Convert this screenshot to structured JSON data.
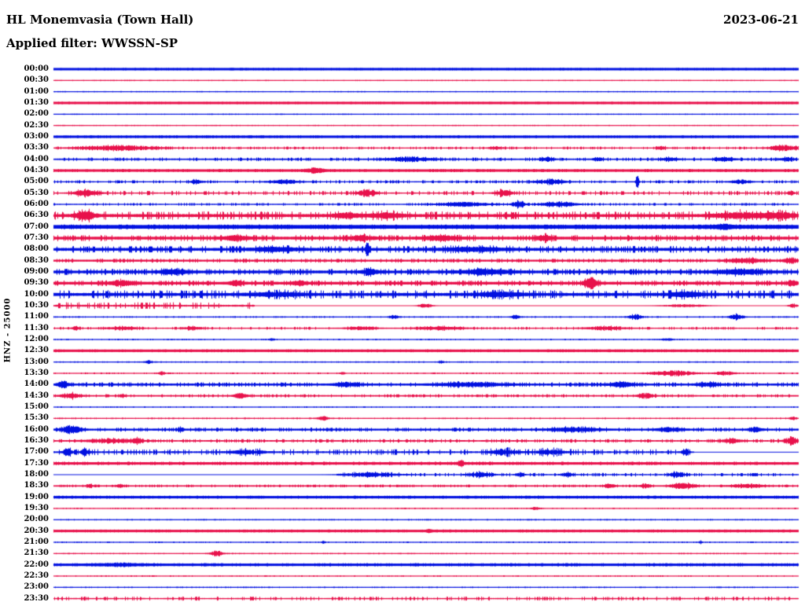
{
  "header": {
    "station_title": "HL Monemvasia (Town Hall)",
    "date": "2023-06-21",
    "filter_line": "Applied filter: WWSSN-SP"
  },
  "y_axis_label": "HNZ - 25000",
  "colors": {
    "trace_blue": "#0010e0",
    "trace_red": "#e8114b",
    "text": "#000000",
    "background": "#ffffff"
  },
  "chart_data": {
    "type": "line",
    "subtype": "helicorder-day-plot",
    "station": "HL Monemvasia (Town Hall)",
    "channel_and_scale": "HNZ - 25000",
    "date": "2023-06-21",
    "applied_filter": "WWSSN-SP",
    "minutes_per_row": 30,
    "row_color_alternation": [
      "blue",
      "red"
    ],
    "rows": [
      {
        "time": "00:00",
        "color": "blue",
        "thickness": 3,
        "noise": 0.1,
        "events": []
      },
      {
        "time": "00:30",
        "color": "red",
        "thickness": 1.2,
        "noise": 0.1,
        "events": []
      },
      {
        "time": "01:00",
        "color": "blue",
        "thickness": 1.2,
        "noise": 0.1,
        "events": []
      },
      {
        "time": "01:30",
        "color": "red",
        "thickness": 3,
        "noise": 0.1,
        "events": []
      },
      {
        "time": "02:00",
        "color": "blue",
        "thickness": 1.2,
        "noise": 0.1,
        "events": []
      },
      {
        "time": "02:30",
        "color": "red",
        "thickness": 1.2,
        "noise": 0.1,
        "events": []
      },
      {
        "time": "03:00",
        "color": "blue",
        "thickness": 3,
        "noise": 0.15,
        "events": []
      },
      {
        "time": "03:30",
        "color": "red",
        "thickness": 1.2,
        "noise": 0.5,
        "events": [
          [
            0.087,
            45,
            2.5
          ],
          [
            0.594,
            8,
            1.5
          ],
          [
            0.816,
            6,
            1.5
          ],
          [
            0.98,
            16,
            3
          ]
        ]
      },
      {
        "time": "04:00",
        "color": "blue",
        "thickness": 1.6,
        "noise": 0.6,
        "events": [
          [
            0.478,
            26,
            2.2
          ],
          [
            0.663,
            8,
            1.5
          ],
          [
            0.731,
            6,
            1.5
          ],
          [
            0.827,
            10,
            1.5
          ],
          [
            0.901,
            12,
            1.5
          ],
          [
            0.985,
            8,
            1.5
          ]
        ]
      },
      {
        "time": "04:30",
        "color": "red",
        "thickness": 3,
        "noise": 0.2,
        "events": [
          [
            0.351,
            10,
            2
          ]
        ]
      },
      {
        "time": "05:00",
        "color": "blue",
        "thickness": 1.2,
        "noise": 0.6,
        "events": [
          [
            0.192,
            8,
            1.5
          ],
          [
            0.309,
            20,
            1.5
          ],
          [
            0.668,
            20,
            2
          ],
          [
            0.784,
            2,
            8
          ],
          [
            0.922,
            12,
            2
          ]
        ]
      },
      {
        "time": "05:30",
        "color": "red",
        "thickness": 1.2,
        "noise": 0.9,
        "events": [
          [
            0.044,
            15,
            3
          ],
          [
            0.42,
            12,
            3
          ],
          [
            0.605,
            10,
            3
          ],
          [
            0.99,
            4,
            2.5
          ]
        ]
      },
      {
        "time": "06:00",
        "color": "blue",
        "thickness": 1.2,
        "noise": 0.5,
        "events": [
          [
            0.552,
            30,
            2
          ],
          [
            0.624,
            7,
            4
          ],
          [
            0.679,
            20,
            2.5
          ]
        ]
      },
      {
        "time": "06:30",
        "color": "red",
        "thickness": 3,
        "noise": 1.6,
        "events": [
          [
            0.042,
            12,
            4
          ],
          [
            0.393,
            15,
            2
          ],
          [
            0.446,
            20,
            2
          ],
          [
            0.922,
            30,
            2.5
          ],
          [
            0.975,
            20,
            2.5
          ]
        ]
      },
      {
        "time": "07:00",
        "color": "blue",
        "thickness": 4.5,
        "noise": 0.3,
        "events": [
          [
            0.9,
            10,
            1.5
          ]
        ]
      },
      {
        "time": "07:30",
        "color": "red",
        "thickness": 3,
        "noise": 1.0,
        "events": [
          [
            0.245,
            15,
            2
          ],
          [
            0.414,
            15,
            2
          ],
          [
            0.52,
            20,
            2
          ],
          [
            0.658,
            10,
            2.5
          ]
        ]
      },
      {
        "time": "08:00",
        "color": "blue",
        "thickness": 3,
        "noise": 1.2,
        "events": [
          [
            0.298,
            30,
            1.5
          ],
          [
            0.421,
            2,
            9
          ],
          [
            0.562,
            40,
            1.5
          ]
        ]
      },
      {
        "time": "08:30",
        "color": "red",
        "thickness": 2.2,
        "noise": 0.6,
        "events": [
          [
            0.932,
            20,
            2
          ],
          [
            0.99,
            8,
            2.5
          ]
        ]
      },
      {
        "time": "09:00",
        "color": "blue",
        "thickness": 3,
        "noise": 1.0,
        "events": [
          [
            0.161,
            15,
            2
          ],
          [
            0.425,
            10,
            2.5
          ],
          [
            0.583,
            30,
            2
          ],
          [
            0.922,
            30,
            2
          ]
        ]
      },
      {
        "time": "09:30",
        "color": "red",
        "thickness": 3,
        "noise": 0.8,
        "events": [
          [
            0.092,
            15,
            2
          ],
          [
            0.245,
            8,
            2
          ],
          [
            0.33,
            8,
            2
          ],
          [
            0.721,
            8,
            5
          ],
          [
            0.993,
            5,
            2
          ]
        ]
      },
      {
        "time": "10:00",
        "color": "blue",
        "thickness": 3,
        "noise": 1.6,
        "events": [
          [
            0.3,
            30,
            1.5
          ],
          [
            0.6,
            30,
            1.5
          ],
          [
            0.85,
            20,
            2
          ]
        ]
      },
      {
        "time": "10:30",
        "color": "red",
        "thickness": 1.6,
        "noise": 1.5,
        "noise_range": [
          0,
          0.27
        ],
        "events": [
          [
            0.499,
            8,
            2
          ],
          [
            0.848,
            25,
            1.2
          ],
          [
            0.993,
            5,
            2
          ]
        ]
      },
      {
        "time": "11:00",
        "color": "blue",
        "thickness": 1.2,
        "noise": 0.2,
        "events": [
          [
            0.457,
            5,
            2
          ],
          [
            0.62,
            5,
            2
          ],
          [
            0.781,
            7,
            3
          ],
          [
            0.917,
            8,
            3
          ]
        ]
      },
      {
        "time": "11:30",
        "color": "red",
        "thickness": 1.2,
        "noise": 0.5,
        "events": [
          [
            0.029,
            5,
            1.5
          ],
          [
            0.092,
            20,
            1.5
          ],
          [
            0.187,
            12,
            1.5
          ],
          [
            0.414,
            18,
            1.5
          ],
          [
            0.52,
            30,
            1.5
          ],
          [
            0.742,
            25,
            1.5
          ]
        ]
      },
      {
        "time": "12:00",
        "color": "blue",
        "thickness": 1.2,
        "noise": 0.15,
        "events": [
          [
            0.293,
            3,
            1.2
          ],
          [
            0.824,
            6,
            1.2
          ]
        ]
      },
      {
        "time": "12:30",
        "color": "red",
        "thickness": 3,
        "noise": 0.15,
        "events": []
      },
      {
        "time": "13:00",
        "color": "blue",
        "thickness": 1.2,
        "noise": 0.15,
        "events": [
          [
            0.127,
            5,
            1.5
          ],
          [
            0.52,
            3,
            1.2
          ]
        ]
      },
      {
        "time": "13:30",
        "color": "red",
        "thickness": 1.2,
        "noise": 0.2,
        "events": [
          [
            0.145,
            4,
            1.5
          ],
          [
            0.388,
            3,
            1.2
          ],
          [
            0.832,
            25,
            2.5
          ],
          [
            0.901,
            12,
            1.5
          ]
        ]
      },
      {
        "time": "14:00",
        "color": "blue",
        "thickness": 2.2,
        "noise": 0.7,
        "events": [
          [
            0.013,
            7,
            3
          ],
          [
            0.393,
            15,
            1.5
          ],
          [
            0.562,
            40,
            1.8
          ],
          [
            0.763,
            15,
            2
          ],
          [
            0.88,
            15,
            1.5
          ]
        ]
      },
      {
        "time": "14:30",
        "color": "red",
        "thickness": 1.6,
        "noise": 0.5,
        "events": [
          [
            0.023,
            12,
            2.5
          ],
          [
            0.092,
            4,
            1.5
          ],
          [
            0.251,
            8,
            2.5
          ],
          [
            0.795,
            9,
            2.5
          ]
        ]
      },
      {
        "time": "15:00",
        "color": "blue",
        "thickness": 1.2,
        "noise": 0.15,
        "events": []
      },
      {
        "time": "15:30",
        "color": "red",
        "thickness": 1.2,
        "noise": 0.2,
        "events": [
          [
            0.362,
            6,
            1.8
          ],
          [
            0.993,
            4,
            1.5
          ]
        ]
      },
      {
        "time": "16:00",
        "color": "blue",
        "thickness": 2.2,
        "noise": 0.6,
        "events": [
          [
            0.023,
            11,
            4
          ],
          [
            0.171,
            3,
            2.5
          ],
          [
            0.7,
            30,
            1.8
          ],
          [
            0.827,
            15,
            1.8
          ],
          [
            0.943,
            8,
            1.8
          ]
        ]
      },
      {
        "time": "16:30",
        "color": "red",
        "thickness": 1.6,
        "noise": 0.6,
        "events": [
          [
            0.076,
            30,
            1.8
          ],
          [
            0.113,
            5,
            3
          ],
          [
            0.911,
            12,
            1.8
          ],
          [
            0.99,
            9,
            3
          ]
        ]
      },
      {
        "time": "17:00",
        "color": "blue",
        "thickness": 1.6,
        "noise": 1.2,
        "noise_range": [
          0,
          0.86
        ],
        "events": [
          [
            0.018,
            5,
            4
          ],
          [
            0.042,
            5,
            3
          ],
          [
            0.261,
            20,
            2
          ],
          [
            0.605,
            15,
            3
          ],
          [
            0.668,
            20,
            2
          ],
          [
            0.848,
            4,
            3.5
          ]
        ]
      },
      {
        "time": "17:30",
        "color": "red",
        "thickness": 3,
        "noise": 0.3,
        "events": [
          [
            0.547,
            4,
            2.5
          ]
        ]
      },
      {
        "time": "18:00",
        "color": "blue",
        "thickness": 1.2,
        "noise": 0.7,
        "noise_range": [
          0.38,
          1
        ],
        "events": [
          [
            0.425,
            30,
            2
          ],
          [
            0.573,
            15,
            2
          ],
          [
            0.626,
            5,
            2
          ],
          [
            0.689,
            7,
            2
          ],
          [
            0.837,
            9,
            2.5
          ]
        ]
      },
      {
        "time": "18:30",
        "color": "red",
        "thickness": 1.6,
        "noise": 0.4,
        "events": [
          [
            0.048,
            4,
            1.5
          ],
          [
            0.089,
            4,
            1.5
          ],
          [
            0.747,
            6,
            2
          ],
          [
            0.795,
            6,
            2
          ],
          [
            0.846,
            14,
            3
          ],
          [
            0.932,
            20,
            1.5
          ]
        ]
      },
      {
        "time": "19:00",
        "color": "blue",
        "thickness": 3,
        "noise": 0.2,
        "events": []
      },
      {
        "time": "19:30",
        "color": "red",
        "thickness": 1.2,
        "noise": 0.15,
        "events": [
          [
            0.647,
            5,
            1.2
          ]
        ]
      },
      {
        "time": "20:00",
        "color": "blue",
        "thickness": 1.2,
        "noise": 0.15,
        "events": []
      },
      {
        "time": "20:30",
        "color": "red",
        "thickness": 3,
        "noise": 0.15,
        "events": [
          [
            0.504,
            3,
            1
          ]
        ]
      },
      {
        "time": "21:00",
        "color": "blue",
        "thickness": 1.2,
        "noise": 0.15,
        "events": [
          [
            0.362,
            2,
            1.5
          ],
          [
            0.869,
            2,
            1.5
          ]
        ]
      },
      {
        "time": "21:30",
        "color": "red",
        "thickness": 1.2,
        "noise": 0.15,
        "events": [
          [
            0.219,
            7,
            3
          ]
        ]
      },
      {
        "time": "22:00",
        "color": "blue",
        "thickness": 3,
        "noise": 0.25,
        "events": [
          [
            0.087,
            30,
            0.8
          ]
        ]
      },
      {
        "time": "22:30",
        "color": "red",
        "thickness": 1.2,
        "noise": 0.15,
        "events": []
      },
      {
        "time": "23:00",
        "color": "blue",
        "thickness": 1.2,
        "noise": 0.15,
        "events": []
      },
      {
        "time": "23:30",
        "color": "red",
        "thickness": 1.2,
        "noise": 0.8,
        "events": []
      }
    ]
  }
}
